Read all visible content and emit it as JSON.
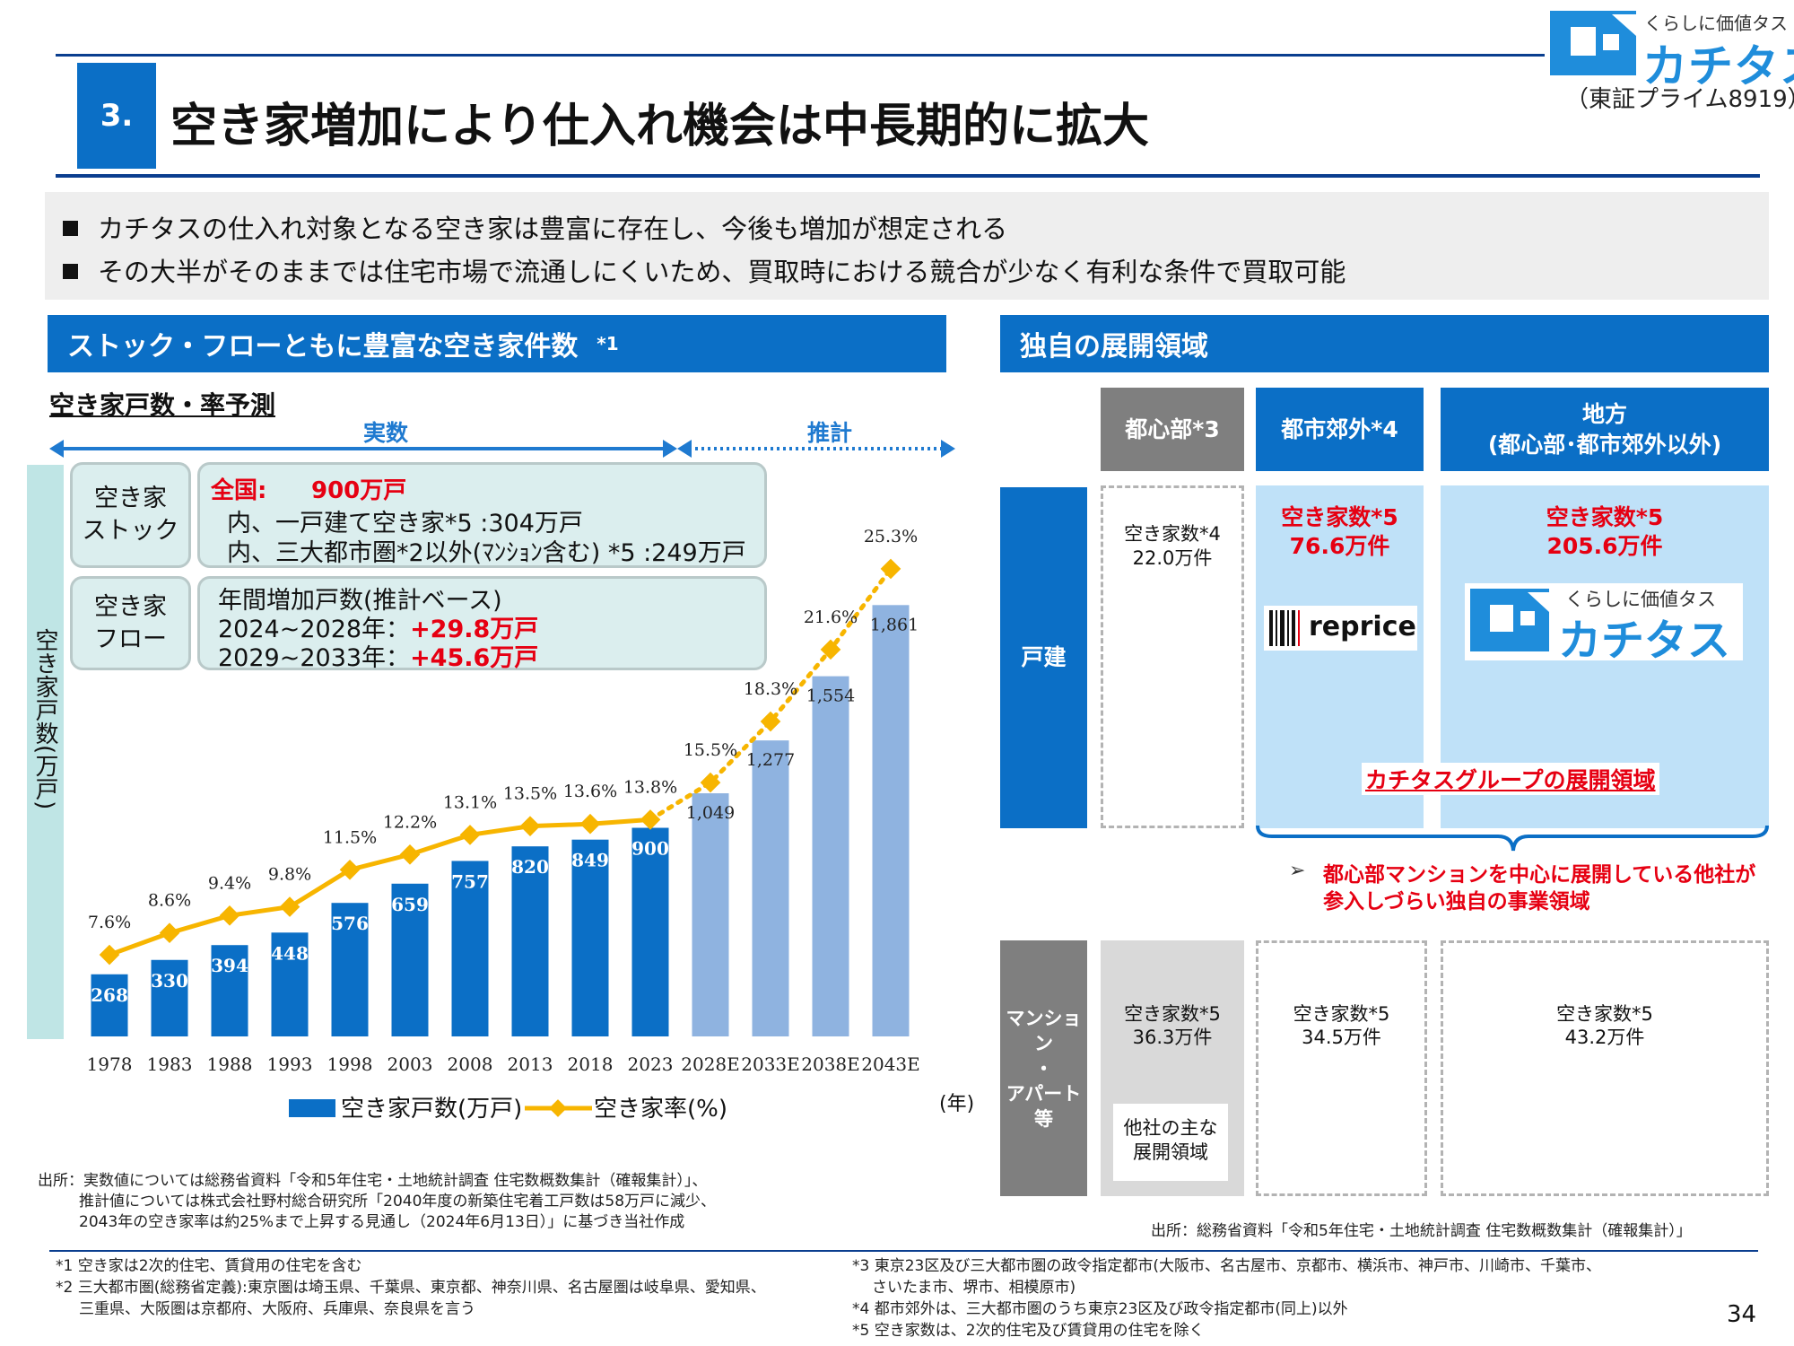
{
  "header": {
    "section_number": "3.",
    "title": "空き家増加により仕入れ機会は中長期的に拡大",
    "logo_tagline": "くらしに価値タス",
    "logo_name": "カチタス",
    "ticker": "（東証プライム8919）"
  },
  "bullets": [
    "カチタスの仕入れ対象となる空き家は豊富に存在し、今後も増加が想定される",
    "その大半がそのままでは住宅市場で流通しにくいため、買取時における競合が少なく有利な条件で買取可能"
  ],
  "left": {
    "section_title": "ストック・フローともに豊富な空き家件数",
    "section_note": "*1",
    "chart_subtitle": "空き家戸数・率予測",
    "actual_label": "実数",
    "estimate_label": "推計",
    "y_axis_label": "空き家戸数(万戸)",
    "stock_label_1": "空き家",
    "stock_label_2": "ストック",
    "stock_line1_prefix": "全国:",
    "stock_line1_value": "900万戸",
    "stock_line2": "内、一戸建て空き家*5 :304万戸",
    "stock_line3": "内、三大都市圏*2以外(ﾏﾝｼｮﾝ含む) *5 :249万戸",
    "flow_label_1": "空き家",
    "flow_label_2": "フロー",
    "flow_line1": "年間増加戸数(推計ベース)",
    "flow_line2_prefix": "2024~2028年：",
    "flow_line2_value": "+29.8万戸",
    "flow_line3_prefix": "2029~2033年：",
    "flow_line3_value": "+45.6万戸",
    "year_unit": "(年)",
    "source": [
      "出所：実数値については総務省資料「令和5年住宅・土地統計調査 住宅数概数集計（確報集計）」、",
      "推計値については株式会社野村総合研究所「2040年度の新築住宅着工戸数は58万戸に減少、",
      "2043年の空き家率は約25%まで上昇する見通し（2024年6月13日）」に基づき当社作成"
    ]
  },
  "chart_data": {
    "type": "bar",
    "categories": [
      "1978",
      "1983",
      "1988",
      "1993",
      "1998",
      "2003",
      "2008",
      "2013",
      "2018",
      "2023",
      "2028E",
      "2033E",
      "2038E",
      "2043E"
    ],
    "series": [
      {
        "name": "空き家戸数(万戸)",
        "values": [
          268,
          330,
          394,
          448,
          576,
          659,
          757,
          820,
          849,
          900,
          1049,
          1277,
          1554,
          1861
        ],
        "labels": [
          "268",
          "330",
          "394",
          "448",
          "576",
          "659",
          "757",
          "820",
          "849",
          "900",
          "1,049",
          "1,277",
          "1,554",
          "1,861"
        ]
      },
      {
        "name": "空き家率(%)",
        "type": "line",
        "values": [
          7.6,
          8.6,
          9.4,
          9.8,
          11.5,
          12.2,
          13.1,
          13.5,
          13.6,
          13.8,
          15.5,
          18.3,
          21.6,
          25.3
        ],
        "labels": [
          "7.6%",
          "8.6%",
          "9.4%",
          "9.8%",
          "11.5%",
          "12.2%",
          "13.1%",
          "13.5%",
          "13.6%",
          "13.8%",
          "15.5%",
          "18.3%",
          "21.6%",
          "25.3%"
        ]
      }
    ],
    "estimated_from_index": 10,
    "colors": {
      "actual_bar": "#0b6fc6",
      "estimate_bar": "#8fb3e0",
      "line": "#f7b500"
    }
  },
  "right": {
    "section_title": "独自の展開領域",
    "col_urban": "都心部*3",
    "col_suburb": "都市郊外*4",
    "col_rural_1": "地方",
    "col_rural_2": "(都心部･都市郊外以外)",
    "row_house": "戸建",
    "row_mansion_1": "マンション",
    "row_mansion_2": "・",
    "row_mansion_3": "アパート",
    "row_mansion_4": "等",
    "house_urban_1": "空き家数*4",
    "house_urban_2": "22.0万件",
    "house_suburb_1": "空き家数*5",
    "house_suburb_2": "76.6万件",
    "house_rural_1": "空き家数*5",
    "house_rural_2": "205.6万件",
    "reprice_logo": "reprice",
    "katitas_logo_tagline": "くらしに価値タス",
    "katitas_logo_name": "カチタス",
    "group_area": "カチタスグループの展開領域",
    "note_1": "都心部マンションを中心に展開している他社が",
    "note_2": "参入しづらい独自の事業領域",
    "mansion_urban_1": "空き家数*5",
    "mansion_urban_2": "36.3万件",
    "other_area_1": "他社の主な",
    "other_area_2": "展開領域",
    "mansion_suburb_1": "空き家数*5",
    "mansion_suburb_2": "34.5万件",
    "mansion_rural_1": "空き家数*5",
    "mansion_rural_2": "43.2万件",
    "source": "出所：総務省資料「令和5年住宅・土地統計調査 住宅数概数集計（確報集計）」"
  },
  "footnotes": {
    "n1": "*1 空き家は2次的住宅、賃貸用の住宅を含む",
    "n2a": "*2 三大都市圏(総務省定義):東京圏は埼玉県、千葉県、東京都、神奈川県、名古屋圏は岐阜県、愛知県、",
    "n2b": "三重県、大阪圏は京都府、大阪府、兵庫県、奈良県を言う",
    "n3a": "*3 東京23区及び三大都市圏の政令指定都市(大阪市、名古屋市、京都市、横浜市、神戸市、川崎市、千葉市、",
    "n3b": "さいたま市、堺市、相模原市)",
    "n4": "*4 都市郊外は、三大都市圏のうち東京23区及び政令指定都市(同上)以外",
    "n5": "*5 空き家数は、2次的住宅及び賃貸用の住宅を除く",
    "page": "34"
  }
}
